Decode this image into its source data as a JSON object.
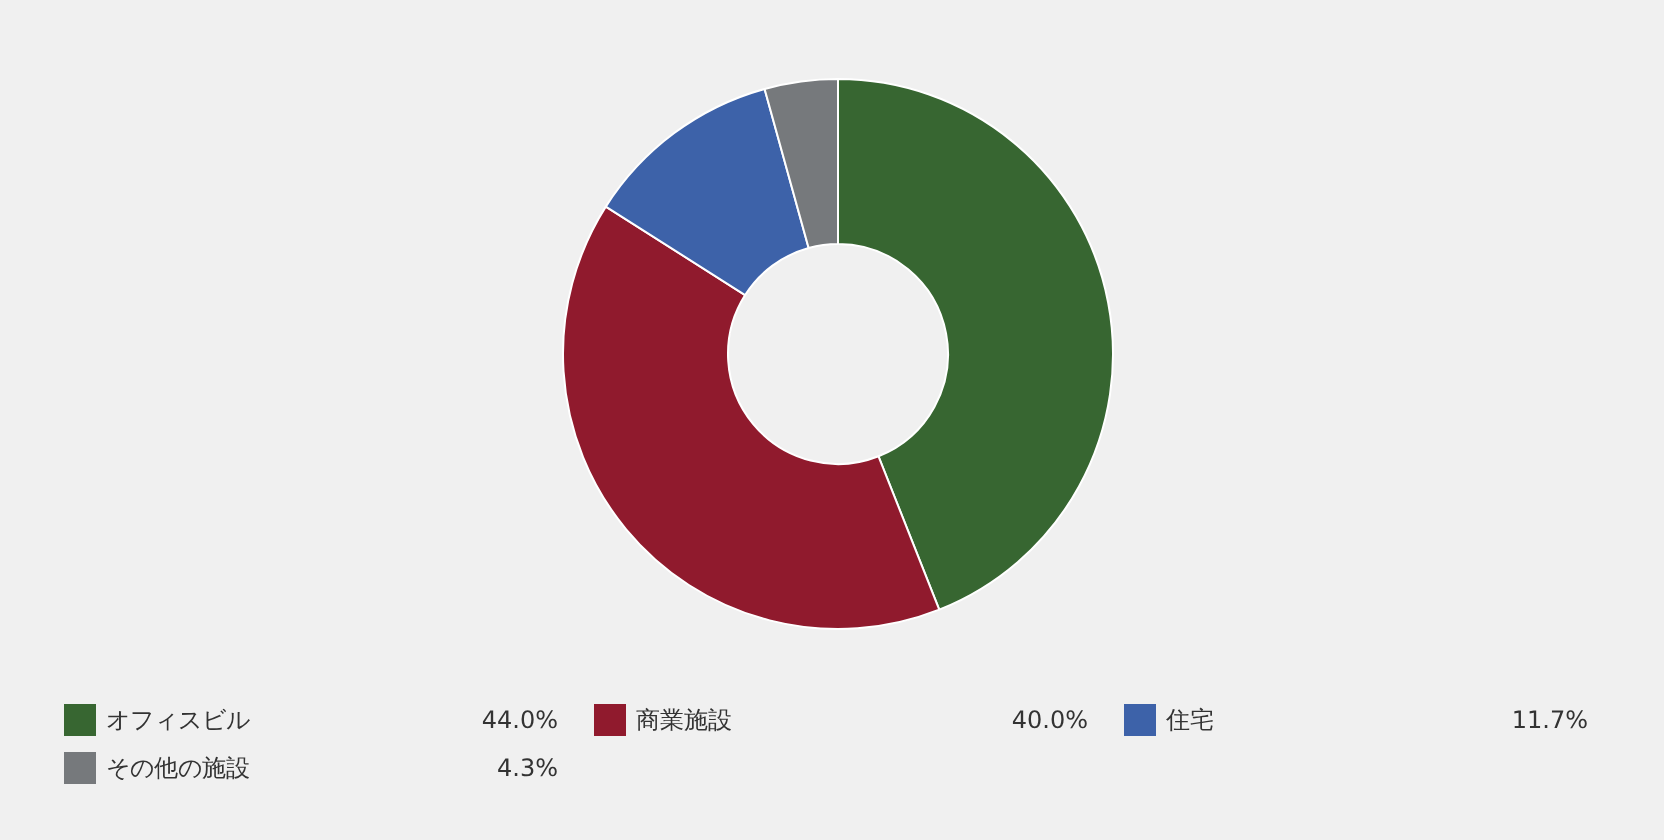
{
  "chart_data": {
    "type": "donut",
    "categories": [
      "オフィスビル",
      "商業施設",
      "住宅",
      "その他の施設"
    ],
    "values": [
      44.0,
      40.0,
      11.7,
      4.3
    ],
    "value_labels": [
      "44.0%",
      "40.0%",
      "11.7%",
      "4.3%"
    ],
    "colors": [
      "#376631",
      "#901a2d",
      "#3d62a9",
      "#76797c"
    ],
    "legend": "bottom"
  }
}
